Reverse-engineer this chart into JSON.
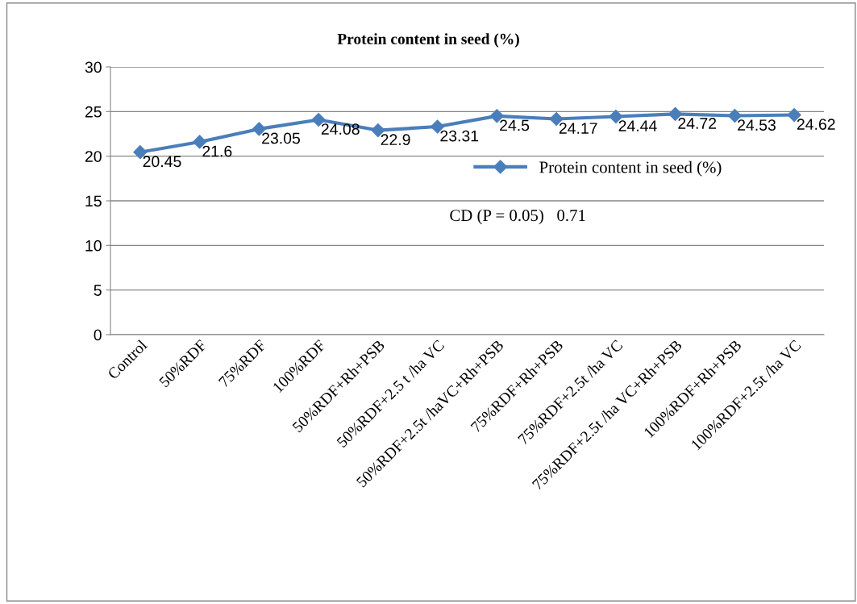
{
  "chart_data": {
    "type": "line",
    "title": "Protein content in seed (%)",
    "categories": [
      "Control",
      "50%RDF",
      "75%RDF",
      "100%RDF",
      "50%RDF+Rh+PSB",
      "50%RDF+2.5 t /ha VC",
      "50%RDF+2.5t /haVC+Rh+PSB",
      "75%RDF+Rh+PSB",
      "75%RDF+2.5t /ha VC",
      "75%RDF+2.5t /ha VC+Rh+PSB",
      "100%RDF+Rh+PSB",
      "100%RDF+2.5t /ha VC"
    ],
    "series": [
      {
        "name": "Protein content in seed (%)",
        "color": "#4a7ebb",
        "values": [
          20.45,
          21.6,
          23.05,
          24.08,
          22.9,
          23.31,
          24.5,
          24.17,
          24.44,
          24.72,
          24.53,
          24.62
        ]
      }
    ],
    "ylim": [
      0,
      30
    ],
    "yticks": [
      0,
      5,
      10,
      15,
      20,
      25,
      30
    ],
    "grid": "y",
    "legend": "right",
    "marker": "diamond",
    "line_style": "solid",
    "data_labels": true,
    "annotations": [
      "CD (P = 0.05)   0.71"
    ]
  }
}
